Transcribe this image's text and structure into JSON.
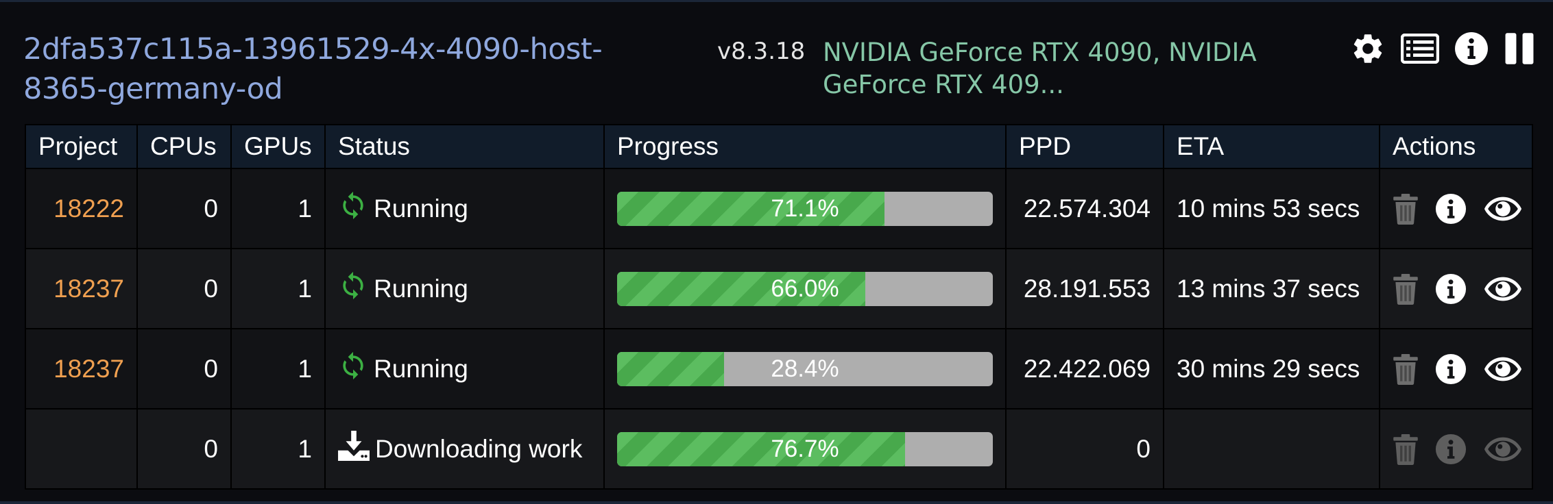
{
  "header": {
    "hostname": "2dfa537c115a-13961529-4x-4090-host-8365-germany-od",
    "version": "v8.3.18",
    "gpus": "NVIDIA GeForce RTX 4090, NVIDIA GeForce RTX 409...",
    "icons": [
      "gear-icon",
      "list-icon",
      "info-icon",
      "pause-icon"
    ]
  },
  "table": {
    "columns": [
      "Project",
      "CPUs",
      "GPUs",
      "Status",
      "Progress",
      "PPD",
      "ETA",
      "Actions"
    ],
    "rows": [
      {
        "project": "18222",
        "cpus": "0",
        "gpus": "1",
        "status_icon": "sync-icon",
        "status": "Running",
        "progress": 71.1,
        "progress_label": "71.1%",
        "ppd": "22.574.304",
        "eta": "10 mins 53 secs",
        "actions_enabled": true
      },
      {
        "project": "18237",
        "cpus": "0",
        "gpus": "1",
        "status_icon": "sync-icon",
        "status": "Running",
        "progress": 66.0,
        "progress_label": "66.0%",
        "ppd": "28.191.553",
        "eta": "13 mins 37 secs",
        "actions_enabled": true
      },
      {
        "project": "18237",
        "cpus": "0",
        "gpus": "1",
        "status_icon": "sync-icon",
        "status": "Running",
        "progress": 28.4,
        "progress_label": "28.4%",
        "ppd": "22.422.069",
        "eta": "30 mins 29 secs",
        "actions_enabled": true
      },
      {
        "project": "",
        "cpus": "0",
        "gpus": "1",
        "status_icon": "download-icon",
        "status": "Downloading work",
        "progress": 76.7,
        "progress_label": "76.7%",
        "ppd": "0",
        "eta": "",
        "actions_enabled": false
      }
    ],
    "action_icons": [
      "trash-icon",
      "info-icon",
      "eye-icon"
    ]
  },
  "colors": {
    "hostname": "#8fa8de",
    "gpu_text": "#86c7a7",
    "project": "#f0a050",
    "running_icon": "#3cb043",
    "progress_fill": "#5cbd60",
    "progress_track": "#aeaeae",
    "action_enabled": "#ffffff",
    "action_trash": "#6e6e6e",
    "action_disabled": "#5e5e5e"
  }
}
